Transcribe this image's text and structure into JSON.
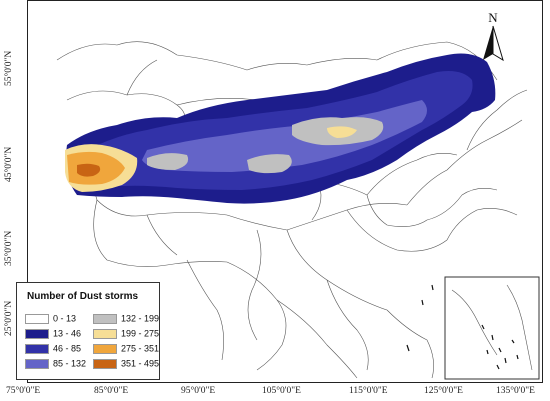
{
  "map": {
    "lat_labels": [
      "55°0'0\"N",
      "45°0'0\"N",
      "35°0'0\"N",
      "25°0'0\"N"
    ],
    "lon_labels": [
      "75°0'0\"E",
      "85°0'0\"E",
      "95°0'0\"E",
      "105°0'0\"E",
      "115°0'0\"E",
      "125°0'0\"E",
      "135°0'0\"E"
    ],
    "north_label": "N"
  },
  "legend": {
    "title": "Number of Dust storms",
    "items": [
      {
        "label": "0 - 13",
        "color": "#ffffff"
      },
      {
        "label": "13 - 46",
        "color": "#1d1d8c"
      },
      {
        "label": "46 - 85",
        "color": "#3232a8"
      },
      {
        "label": "85 - 132",
        "color": "#6464c8"
      },
      {
        "label": "132 - 199",
        "color": "#c0c0c0"
      },
      {
        "label": "199 - 275",
        "color": "#f6de96"
      },
      {
        "label": "275 - 351",
        "color": "#f0a63c"
      },
      {
        "label": "351 - 495",
        "color": "#c86414"
      }
    ]
  }
}
